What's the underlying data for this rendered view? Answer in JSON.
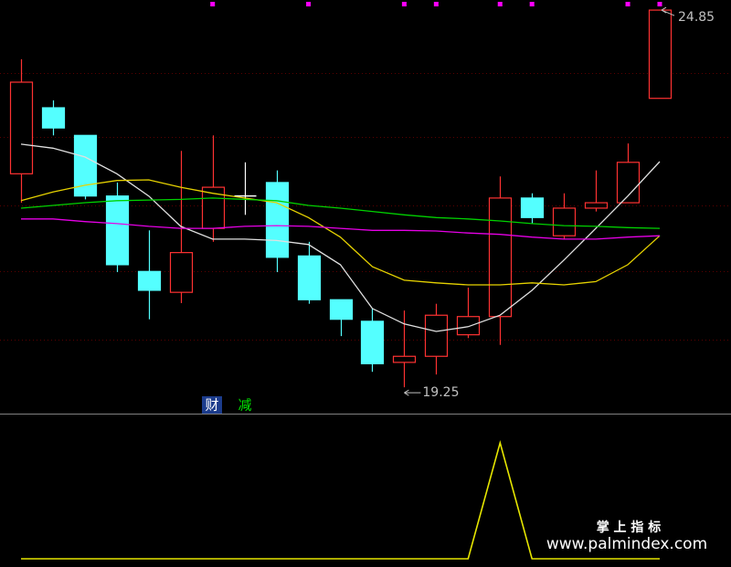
{
  "chart_data": {
    "type": "candlestick",
    "ylim": [
      18.9,
      25
    ],
    "gridlines": [
      23.92,
      22.97,
      21.95,
      20.97,
      19.96
    ],
    "candles": {
      "open": [
        22.42,
        23.4,
        22.99,
        22.09,
        20.97,
        20.66,
        21.61,
        22.09,
        22.29,
        21.2,
        20.55,
        20.23,
        19.62,
        19.71,
        20.03,
        20.3,
        22.06,
        21.5,
        21.91,
        21.99,
        23.54
      ],
      "high": [
        24.12,
        23.51,
        22.99,
        22.29,
        21.58,
        22.76,
        22.99,
        22.59,
        22.47,
        21.41,
        20.55,
        20.42,
        20.39,
        20.49,
        20.73,
        22.38,
        22.13,
        22.13,
        22.47,
        22.87,
        24.85
      ],
      "low": [
        21.99,
        22.99,
        22.04,
        20.96,
        20.26,
        20.5,
        21.41,
        21.81,
        20.96,
        20.49,
        20.01,
        19.48,
        19.25,
        19.44,
        19.98,
        19.88,
        21.68,
        21.45,
        21.86,
        21.99,
        23.54
      ],
      "close": [
        23.78,
        23.1,
        22.09,
        21.07,
        20.69,
        21.25,
        22.22,
        22.09,
        21.18,
        20.55,
        20.26,
        19.6,
        19.71,
        20.32,
        20.3,
        22.06,
        21.77,
        21.91,
        21.99,
        22.59,
        24.85
      ],
      "up_color": "#ff3232",
      "down_color": "#54ffff",
      "flat_color": "#ffffff"
    },
    "moving_averages": [
      {
        "color": "#e0e0e0",
        "values": [
          22.86,
          22.8,
          22.67,
          22.42,
          22.09,
          21.64,
          21.45,
          21.45,
          21.43,
          21.37,
          21.07,
          20.42,
          20.19,
          20.08,
          20.15,
          20.32,
          20.69,
          21.14,
          21.61,
          22.09,
          22.6
        ]
      },
      {
        "color": "#e6d200",
        "values": [
          22.02,
          22.15,
          22.25,
          22.32,
          22.33,
          22.22,
          22.13,
          22.06,
          21.99,
          21.77,
          21.48,
          21.04,
          20.84,
          20.8,
          20.77,
          20.77,
          20.8,
          20.77,
          20.82,
          21.07,
          21.5
        ]
      },
      {
        "color": "#00d200",
        "values": [
          21.91,
          21.95,
          21.99,
          22.02,
          22.03,
          22.04,
          22.06,
          22.04,
          22.02,
          21.95,
          21.91,
          21.86,
          21.81,
          21.77,
          21.75,
          21.72,
          21.68,
          21.65,
          21.64,
          21.62,
          21.61
        ]
      },
      {
        "color": "#e600e6",
        "values": [
          21.75,
          21.75,
          21.71,
          21.68,
          21.64,
          21.61,
          21.61,
          21.64,
          21.65,
          21.64,
          21.61,
          21.58,
          21.58,
          21.57,
          21.54,
          21.52,
          21.48,
          21.45,
          21.45,
          21.48,
          21.5
        ]
      }
    ],
    "high_label": "24.85",
    "low_label": "19.25",
    "signals": {
      "color": "#ff00ff",
      "values": [
        0,
        0,
        0,
        0,
        0,
        0,
        1,
        0,
        0,
        1,
        0,
        0,
        1,
        1,
        0,
        1,
        1,
        0,
        0,
        1,
        1
      ]
    },
    "tags": [
      {
        "text": "财",
        "color": "#ffffff",
        "background": "#1c3c8c"
      },
      {
        "text": "减",
        "color": "#00e600"
      }
    ],
    "indicator": {
      "color": "#e6e600",
      "ylim": [
        0,
        1
      ],
      "values": [
        0,
        0,
        0,
        0,
        0,
        0,
        0,
        0,
        0,
        0,
        0,
        0,
        0,
        0,
        0,
        1,
        0,
        0,
        0,
        0,
        0
      ]
    },
    "watermark": {
      "title": "掌 上 指 标",
      "url": "www.palmindex.com"
    }
  }
}
